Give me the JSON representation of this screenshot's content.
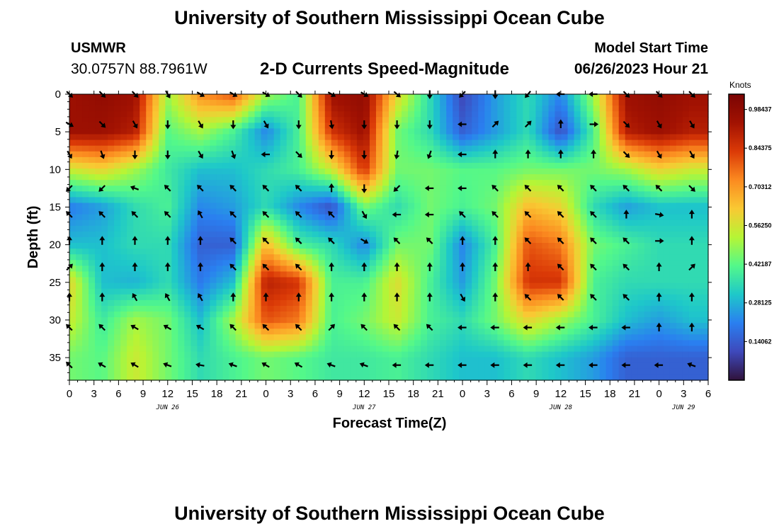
{
  "header": {
    "title": "University of Southern Mississippi Ocean Cube",
    "station": "USMWR",
    "coords": "30.0757N  88.7961W",
    "subtitle": "2-D Currents Speed-Magnitude",
    "model_start_label": "Model Start Time",
    "model_start_value": "06/26/2023 Hour 21"
  },
  "footer": {
    "title": "University of Southern Mississippi Ocean Cube"
  },
  "colorbar": {
    "unit": "Knots",
    "ticks": [
      "0.14062",
      "0.28125",
      "0.42187",
      "0.56250",
      "0.70312",
      "0.84375",
      "0.98437"
    ],
    "colors": [
      "#30123b",
      "#3e49bb",
      "#2a7ff0",
      "#1ec8c9",
      "#53f88a",
      "#b6f535",
      "#f9c933",
      "#fb8a20",
      "#db3a07",
      "#a21202",
      "#7a0403"
    ]
  },
  "chart_data": {
    "type": "heatmap",
    "title": "2-D Currents Speed-Magnitude",
    "xlabel": "Forecast Time(Z)",
    "ylabel": "Depth (ft)",
    "x_tick_labels": [
      "0",
      "3",
      "6",
      "9",
      "12",
      "15",
      "18",
      "21",
      "0",
      "3",
      "6",
      "9",
      "12",
      "15",
      "18",
      "21",
      "0",
      "3",
      "6",
      "9",
      "12",
      "15",
      "18",
      "21",
      "0",
      "3",
      "6"
    ],
    "date_labels": [
      {
        "label": "JUN 26",
        "hour": 12
      },
      {
        "label": "JUN 27",
        "hour": 36
      },
      {
        "label": "JUN 28",
        "hour": 60
      },
      {
        "label": "JUN 29",
        "hour": 75
      }
    ],
    "x_range_hours": [
      0,
      78
    ],
    "ylim": [
      0,
      38
    ],
    "y_ticks": [
      0,
      5,
      10,
      15,
      20,
      25,
      30,
      35
    ],
    "y_inverted": true,
    "color_range": [
      0,
      1.04
    ],
    "unit": "Knots",
    "speed_grid": {
      "hours": [
        0,
        4,
        8,
        12,
        16,
        20,
        24,
        28,
        32,
        36,
        40,
        44,
        48,
        52,
        56,
        60,
        64,
        68,
        72,
        76
      ],
      "depths": [
        0,
        5,
        10,
        15,
        20,
        25,
        30,
        35
      ],
      "values": [
        [
          0.95,
          0.98,
          0.95,
          0.5,
          0.72,
          0.8,
          0.5,
          0.4,
          0.95,
          0.98,
          0.6,
          0.35,
          0.1,
          0.25,
          0.35,
          0.22,
          0.5,
          0.95,
          0.98,
          0.95
        ],
        [
          0.95,
          0.95,
          0.9,
          0.42,
          0.5,
          0.4,
          0.22,
          0.4,
          0.85,
          0.95,
          0.45,
          0.35,
          0.15,
          0.25,
          0.35,
          0.12,
          0.4,
          0.9,
          0.95,
          0.9
        ],
        [
          0.55,
          0.6,
          0.5,
          0.38,
          0.3,
          0.3,
          0.35,
          0.4,
          0.55,
          0.85,
          0.45,
          0.45,
          0.42,
          0.42,
          0.45,
          0.45,
          0.45,
          0.5,
          0.6,
          0.55
        ],
        [
          0.2,
          0.25,
          0.35,
          0.4,
          0.22,
          0.25,
          0.35,
          0.22,
          0.12,
          0.45,
          0.35,
          0.45,
          0.4,
          0.45,
          0.65,
          0.6,
          0.35,
          0.25,
          0.3,
          0.3
        ],
        [
          0.3,
          0.3,
          0.35,
          0.35,
          0.15,
          0.15,
          0.65,
          0.4,
          0.35,
          0.22,
          0.45,
          0.45,
          0.22,
          0.4,
          0.8,
          0.75,
          0.45,
          0.4,
          0.35,
          0.35
        ],
        [
          0.6,
          0.3,
          0.28,
          0.35,
          0.2,
          0.3,
          0.9,
          0.85,
          0.4,
          0.4,
          0.58,
          0.4,
          0.25,
          0.45,
          0.85,
          0.85,
          0.4,
          0.35,
          0.35,
          0.35
        ],
        [
          0.55,
          0.38,
          0.5,
          0.45,
          0.3,
          0.5,
          0.8,
          0.75,
          0.4,
          0.45,
          0.55,
          0.4,
          0.35,
          0.45,
          0.6,
          0.5,
          0.4,
          0.3,
          0.25,
          0.3
        ],
        [
          0.45,
          0.42,
          0.55,
          0.45,
          0.35,
          0.4,
          0.45,
          0.42,
          0.38,
          0.38,
          0.4,
          0.35,
          0.3,
          0.3,
          0.35,
          0.3,
          0.25,
          0.15,
          0.15,
          0.15
        ]
      ]
    },
    "arrow_grid": {
      "hours": [
        0,
        4,
        8,
        12,
        16,
        20,
        24,
        28,
        32,
        36,
        40,
        44,
        48,
        52,
        56,
        60,
        64,
        68,
        72,
        76
      ],
      "depths": [
        0,
        4,
        8,
        12.5,
        16,
        19.5,
        23,
        27,
        31,
        36
      ],
      "directions_deg": [
        [
          135,
          135,
          135,
          150,
          120,
          120,
          120,
          135,
          120,
          120,
          130,
          180,
          225,
          180,
          220,
          270,
          270,
          135,
          135,
          135
        ],
        [
          120,
          135,
          150,
          180,
          150,
          180,
          150,
          180,
          170,
          180,
          180,
          180,
          270,
          45,
          45,
          0,
          90,
          135,
          150,
          150
        ],
        [
          150,
          160,
          180,
          180,
          150,
          160,
          270,
          135,
          180,
          180,
          190,
          200,
          270,
          0,
          0,
          0,
          0,
          135,
          150,
          150
        ],
        [
          225,
          225,
          290,
          315,
          315,
          315,
          315,
          315,
          0,
          180,
          225,
          270,
          270,
          315,
          315,
          315,
          315,
          315,
          315,
          135
        ],
        [
          315,
          315,
          315,
          315,
          330,
          315,
          315,
          315,
          315,
          150,
          270,
          270,
          315,
          315,
          315,
          315,
          315,
          0,
          100,
          0
        ],
        [
          0,
          0,
          0,
          0,
          0,
          315,
          315,
          315,
          315,
          120,
          315,
          315,
          0,
          0,
          315,
          315,
          315,
          315,
          90,
          0
        ],
        [
          45,
          0,
          0,
          0,
          0,
          315,
          315,
          315,
          0,
          0,
          0,
          0,
          0,
          0,
          0,
          315,
          315,
          315,
          0,
          45
        ],
        [
          0,
          0,
          330,
          330,
          330,
          0,
          0,
          0,
          0,
          0,
          0,
          0,
          150,
          0,
          315,
          315,
          315,
          315,
          0,
          0
        ],
        [
          315,
          315,
          300,
          300,
          300,
          315,
          315,
          315,
          45,
          315,
          315,
          315,
          270,
          270,
          270,
          270,
          270,
          270,
          0,
          0
        ],
        [
          315,
          300,
          300,
          290,
          280,
          290,
          300,
          300,
          290,
          290,
          270,
          270,
          270,
          270,
          270,
          270,
          270,
          270,
          270,
          290
        ]
      ]
    }
  }
}
